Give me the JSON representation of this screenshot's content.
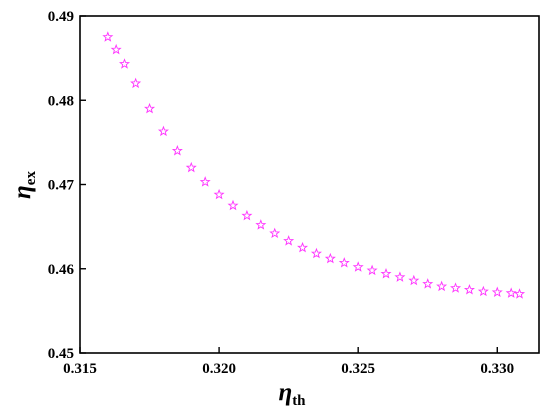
{
  "chart_data": {
    "type": "scatter",
    "title": "",
    "xlabel": {
      "symbol": "η",
      "subscript": "th"
    },
    "ylabel": {
      "symbol": "η",
      "subscript": "ex"
    },
    "xlim": [
      0.315,
      0.3315
    ],
    "ylim": [
      0.45,
      0.49
    ],
    "xticks": [
      0.315,
      0.32,
      0.325,
      0.33
    ],
    "xtick_labels": [
      "0.315",
      "0.320",
      "0.325",
      "0.330"
    ],
    "yticks": [
      0.45,
      0.46,
      0.47,
      0.48,
      0.49
    ],
    "ytick_labels": [
      "0.45",
      "0.46",
      "0.47",
      "0.48",
      "0.49"
    ],
    "grid": false,
    "legend": "none",
    "marker": "star",
    "color": "#ff33ff",
    "series": [
      {
        "x": [
          0.316,
          0.3163,
          0.3166,
          0.317,
          0.3175,
          0.318,
          0.3185,
          0.319,
          0.3195,
          0.32,
          0.3205,
          0.321,
          0.3215,
          0.322,
          0.3225,
          0.323,
          0.3235,
          0.324,
          0.3245,
          0.325,
          0.3255,
          0.326,
          0.3265,
          0.327,
          0.3275,
          0.328,
          0.3285,
          0.329,
          0.3295,
          0.33,
          0.3305,
          0.3308
        ],
        "y": [
          0.4875,
          0.486,
          0.4843,
          0.482,
          0.479,
          0.4763,
          0.474,
          0.472,
          0.4703,
          0.4688,
          0.4675,
          0.4663,
          0.4652,
          0.4642,
          0.4633,
          0.4625,
          0.4618,
          0.4612,
          0.4607,
          0.4602,
          0.4598,
          0.4594,
          0.459,
          0.4586,
          0.4582,
          0.4579,
          0.4577,
          0.4575,
          0.4573,
          0.4572,
          0.4571,
          0.457
        ]
      }
    ]
  }
}
